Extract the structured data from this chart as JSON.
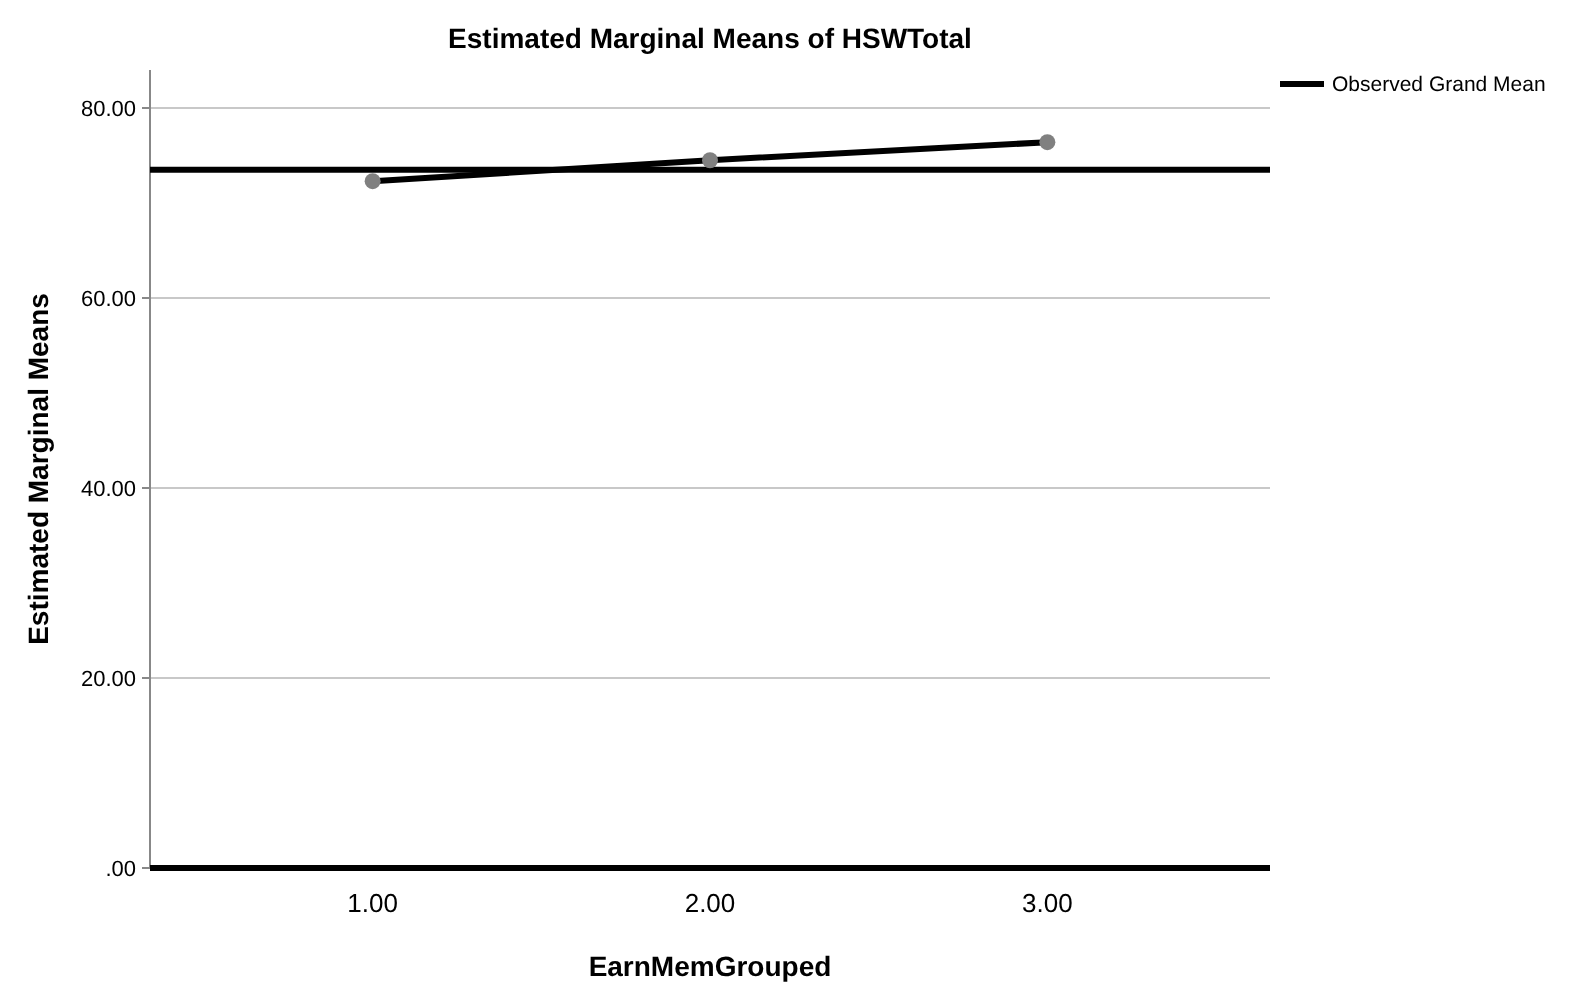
{
  "chart_data": {
    "type": "line",
    "title": "Estimated Marginal Means of HSWTotal",
    "xlabel": "EarnMemGrouped",
    "ylabel": "Estimated Marginal Means",
    "categories": [
      "1.00",
      "2.00",
      "3.00"
    ],
    "series": [
      {
        "color": "#000000",
        "values": [
          72.3,
          74.5,
          76.4
        ]
      }
    ],
    "marker": "circle",
    "line_style": "solid",
    "ylim": [
      0,
      84
    ],
    "yticks": [
      {
        "value": 0,
        "label": ".00"
      },
      {
        "value": 20,
        "label": "20.00"
      },
      {
        "value": 40,
        "label": "40.00"
      },
      {
        "value": 60,
        "label": "60.00"
      },
      {
        "value": 80,
        "label": "80.00"
      }
    ],
    "ref_lines": [
      {
        "axis": "y",
        "value": 73.5,
        "label": "Observed Grand Mean",
        "color": "#000000"
      }
    ],
    "grid": "y",
    "legend": "top right"
  }
}
